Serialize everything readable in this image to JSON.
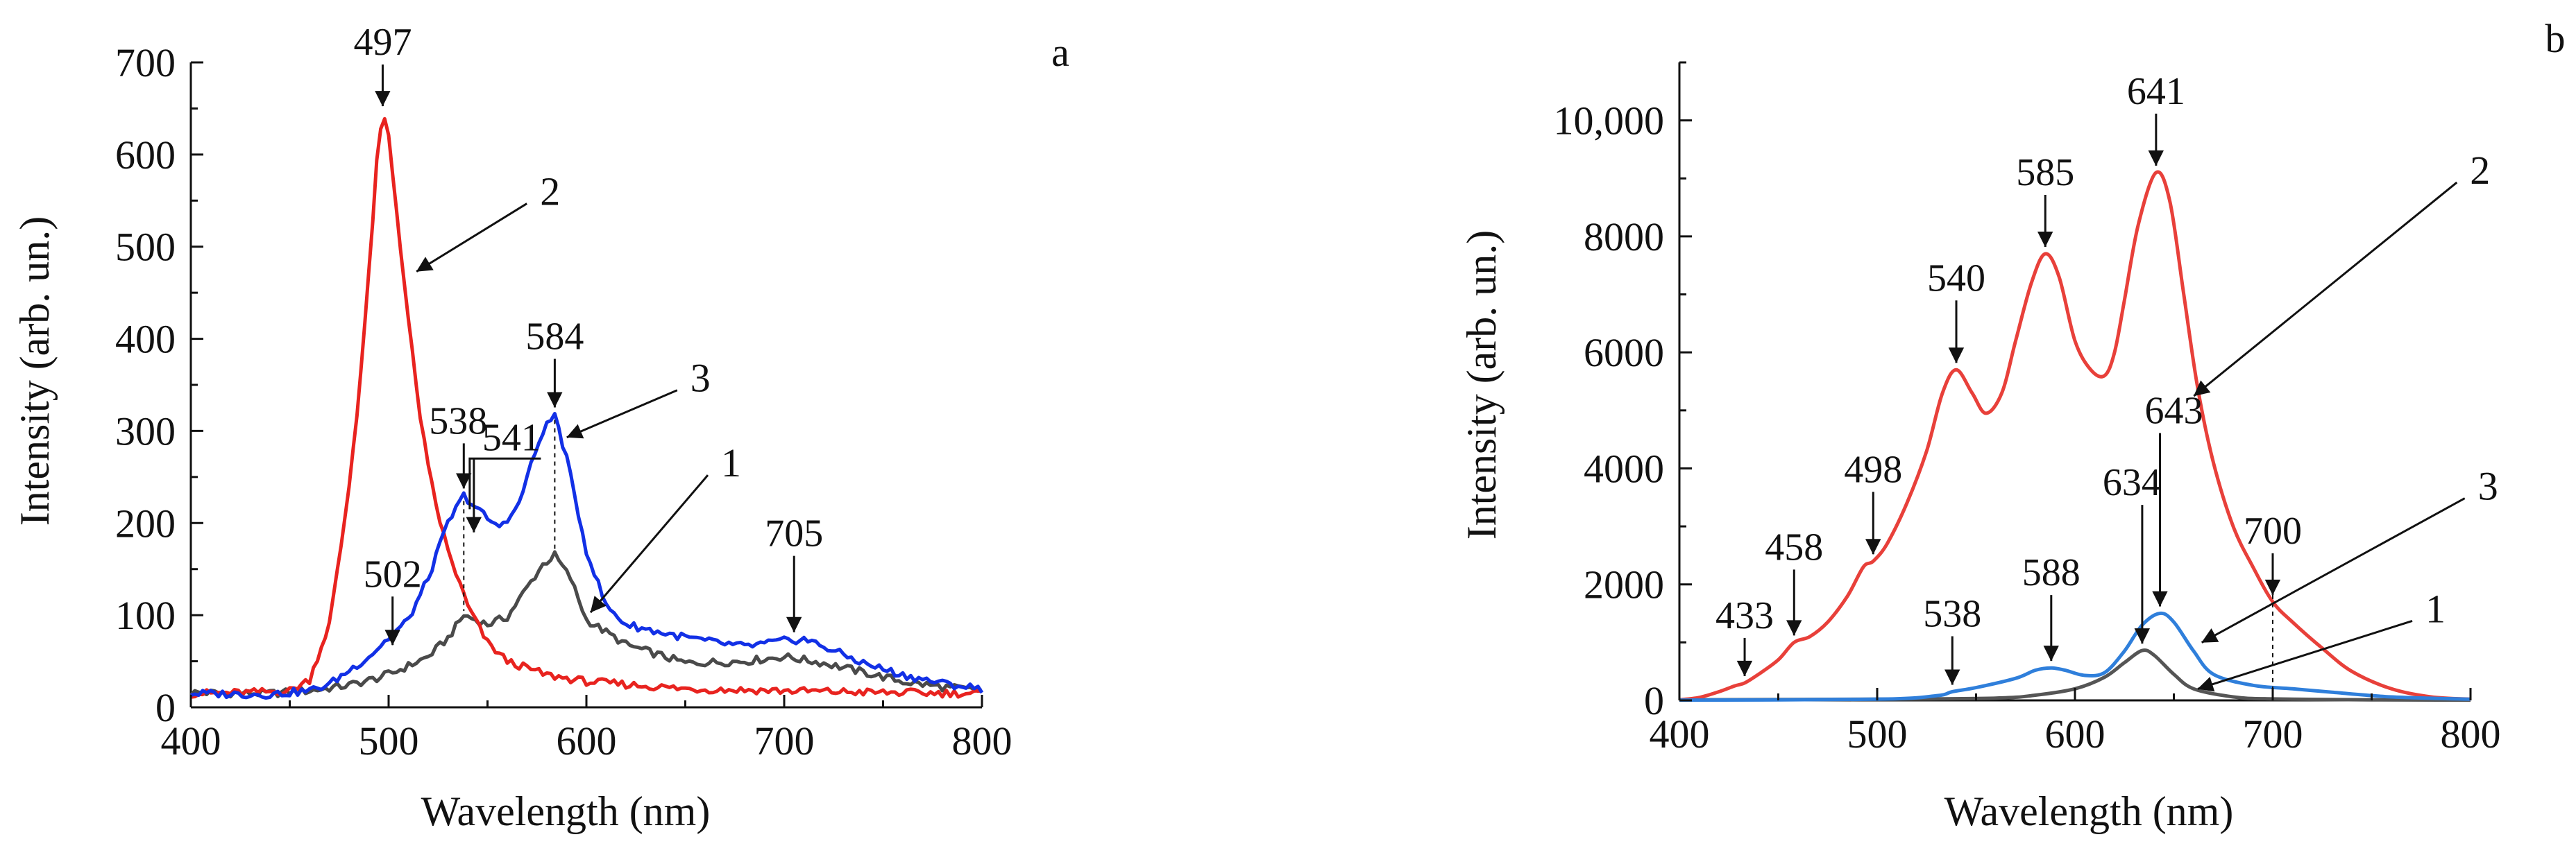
{
  "chart_data": [
    {
      "id": "a",
      "type": "line",
      "panel_label": "a",
      "xlabel": "Wavelength (nm)",
      "ylabel": "Intensity (arb. un.)",
      "xlim": [
        400,
        800
      ],
      "ylim": [
        0,
        700
      ],
      "xticks": [
        400,
        500,
        600,
        700,
        800
      ],
      "yticks": [
        0,
        100,
        200,
        300,
        400,
        500,
        600,
        700
      ],
      "xtick_labels": [
        "400",
        "500",
        "600",
        "700",
        "800"
      ],
      "ytick_labels": [
        "0",
        "100",
        "200",
        "300",
        "400",
        "500",
        "600",
        "700"
      ],
      "grid": false,
      "series": [
        {
          "name": "1",
          "color": "#4a4a4a",
          "x": [
            400,
            440,
            460,
            480,
            495,
            505,
            520,
            530,
            538,
            550,
            560,
            570,
            578,
            584,
            592,
            600,
            620,
            650,
            680,
            700,
            720,
            740,
            760,
            780,
            800
          ],
          "y": [
            16,
            15,
            18,
            24,
            32,
            40,
            55,
            75,
            100,
            90,
            98,
            130,
            155,
            165,
            140,
            95,
            68,
            48,
            50,
            55,
            48,
            38,
            28,
            22,
            18
          ]
        },
        {
          "name": "2",
          "color": "#e8231f",
          "x": [
            400,
            430,
            450,
            460,
            470,
            475,
            480,
            485,
            490,
            494,
            497,
            500,
            505,
            510,
            515,
            520,
            525,
            530,
            540,
            550,
            560,
            580,
            600,
            650,
            700,
            750,
            800
          ],
          "y": [
            15,
            16,
            18,
            30,
            90,
            160,
            240,
            340,
            470,
            590,
            645,
            620,
            520,
            420,
            330,
            260,
            210,
            170,
            110,
            70,
            50,
            35,
            28,
            20,
            18,
            16,
            15
          ]
        },
        {
          "name": "3",
          "color": "#1230e6",
          "x": [
            400,
            440,
            460,
            470,
            480,
            490,
            500,
            510,
            520,
            530,
            538,
            545,
            555,
            565,
            570,
            578,
            584,
            590,
            600,
            610,
            620,
            640,
            660,
            680,
            700,
            710,
            720,
            740,
            760,
            780,
            800
          ],
          "y": [
            15,
            14,
            18,
            25,
            40,
            55,
            75,
            95,
            140,
            200,
            230,
            215,
            195,
            215,
            250,
            300,
            318,
            270,
            170,
            110,
            90,
            80,
            72,
            66,
            72,
            74,
            66,
            48,
            35,
            26,
            20
          ]
        }
      ],
      "annotations": [
        {
          "label": "497",
          "x": 497,
          "y": 645,
          "style": "arrow"
        },
        {
          "label": "502",
          "x": 502,
          "y": 60,
          "style": "arrow"
        },
        {
          "label": "538",
          "x": 538,
          "y": 230,
          "style": "arrow"
        },
        {
          "label": "541",
          "x": 541,
          "y": 185,
          "style": "bracket"
        },
        {
          "label": "584",
          "x": 584,
          "y": 318,
          "style": "arrow"
        },
        {
          "label": "705",
          "x": 705,
          "y": 74,
          "style": "arrow"
        }
      ],
      "curve_labels": [
        {
          "label": "1",
          "x": 600,
          "y": 100
        },
        {
          "label": "2",
          "x": 512,
          "y": 470
        },
        {
          "label": "3",
          "x": 588,
          "y": 290
        }
      ]
    },
    {
      "id": "b",
      "type": "line",
      "panel_label": "b",
      "xlabel": "Wavelength (nm)",
      "ylabel": "Intensity (arb. un.)",
      "xlim": [
        400,
        800
      ],
      "ylim": [
        0,
        11000
      ],
      "xticks": [
        400,
        500,
        600,
        700,
        800
      ],
      "yticks": [
        0,
        2000,
        4000,
        6000,
        8000,
        10000
      ],
      "xtick_labels": [
        "400",
        "500",
        "600",
        "700",
        "800"
      ],
      "ytick_labels": [
        "0",
        "2000",
        "4000",
        "6000",
        "8000",
        "10,000"
      ],
      "grid": false,
      "series": [
        {
          "name": "1",
          "color": "#555555",
          "x": [
            400,
            500,
            560,
            580,
            600,
            615,
            625,
            634,
            640,
            650,
            660,
            680,
            700,
            750,
            800
          ],
          "y": [
            10,
            20,
            40,
            90,
            200,
            400,
            650,
            860,
            780,
            450,
            200,
            60,
            25,
            10,
            5
          ],
          "smooth": true
        },
        {
          "name": "2",
          "color": "#e8403a",
          "x": [
            400,
            410,
            420,
            428,
            433,
            440,
            450,
            458,
            466,
            475,
            485,
            493,
            498,
            505,
            515,
            525,
            533,
            540,
            548,
            555,
            563,
            570,
            578,
            585,
            592,
            600,
            608,
            615,
            620,
            625,
            632,
            641,
            648,
            655,
            662,
            670,
            680,
            690,
            700,
            710,
            725,
            740,
            760,
            780,
            800
          ],
          "y": [
            10,
            50,
            150,
            250,
            300,
            450,
            700,
            1000,
            1100,
            1350,
            1800,
            2300,
            2400,
            2700,
            3400,
            4300,
            5300,
            5700,
            5300,
            4950,
            5300,
            6200,
            7200,
            7700,
            7300,
            6200,
            5700,
            5600,
            6000,
            6900,
            8200,
            9100,
            8600,
            7000,
            5400,
            4100,
            3000,
            2300,
            1700,
            1350,
            900,
            500,
            200,
            60,
            20
          ],
          "smooth": true
        },
        {
          "name": "3",
          "color": "#2f7fdb",
          "x": [
            400,
            500,
            530,
            538,
            550,
            570,
            580,
            588,
            595,
            605,
            615,
            625,
            634,
            643,
            650,
            660,
            670,
            690,
            710,
            730,
            760,
            800
          ],
          "y": [
            5,
            20,
            80,
            150,
            220,
            380,
            520,
            560,
            520,
            430,
            480,
            850,
            1300,
            1500,
            1350,
            850,
            450,
            260,
            200,
            140,
            60,
            20
          ],
          "smooth": true
        }
      ],
      "annotations": [
        {
          "label": "433",
          "x": 433,
          "y": 300,
          "style": "arrow"
        },
        {
          "label": "458",
          "x": 458,
          "y": 1000,
          "style": "arrow"
        },
        {
          "label": "498",
          "x": 498,
          "y": 2400,
          "style": "arrow"
        },
        {
          "label": "538",
          "x": 538,
          "y": 150,
          "style": "arrow"
        },
        {
          "label": "540",
          "x": 540,
          "y": 5700,
          "style": "arrow"
        },
        {
          "label": "585",
          "x": 585,
          "y": 7700,
          "style": "arrow"
        },
        {
          "label": "588",
          "x": 588,
          "y": 560,
          "style": "arrow"
        },
        {
          "label": "634",
          "x": 634,
          "y": 860,
          "style": "arrow"
        },
        {
          "label": "641",
          "x": 641,
          "y": 9100,
          "style": "arrow"
        },
        {
          "label": "643",
          "x": 643,
          "y": 1500,
          "style": "arrow"
        },
        {
          "label": "700",
          "x": 700,
          "y": 1700,
          "style": "arrow-dotted"
        }
      ],
      "curve_labels": [
        {
          "label": "1",
          "x": 660,
          "y": 150
        },
        {
          "label": "2",
          "x": 658,
          "y": 5200
        },
        {
          "label": "3",
          "x": 662,
          "y": 950
        }
      ]
    }
  ]
}
